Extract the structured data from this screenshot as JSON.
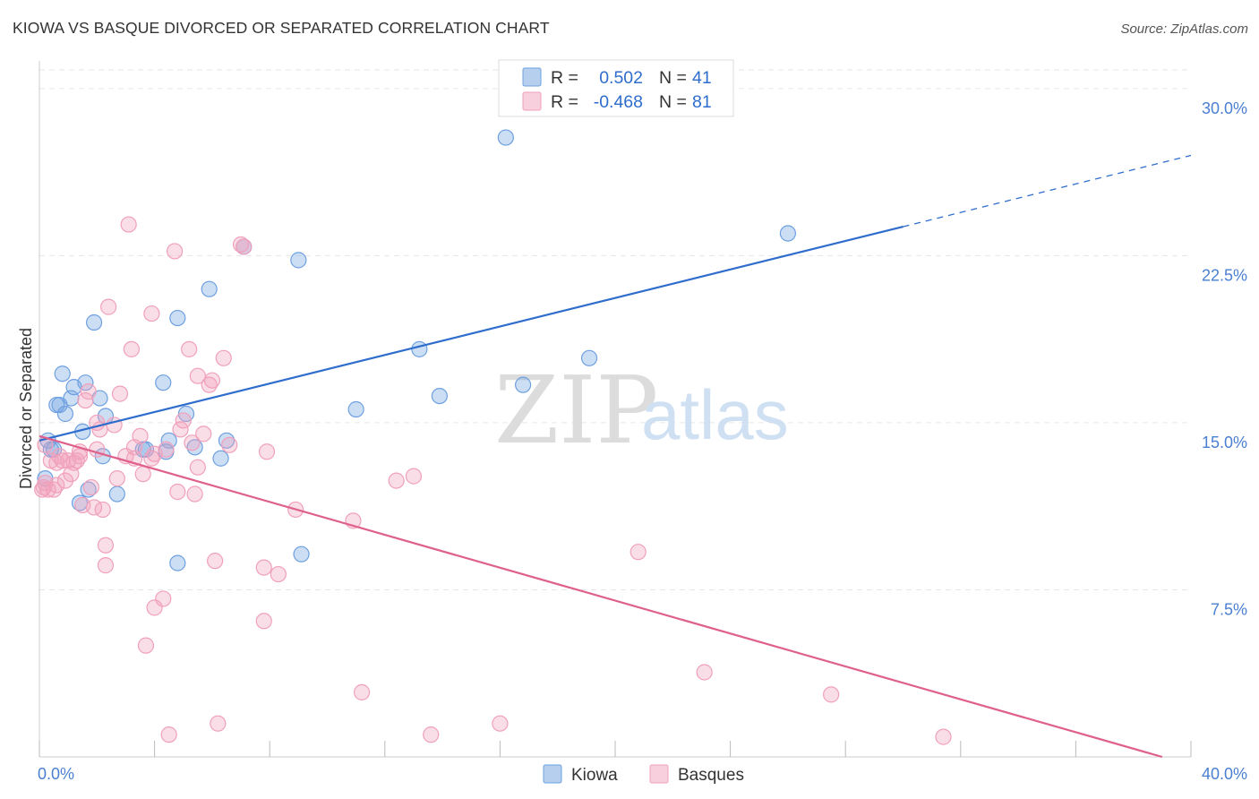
{
  "title": "KIOWA VS BASQUE DIVORCED OR SEPARATED CORRELATION CHART",
  "source": "Source: ZipAtlas.com",
  "watermark": {
    "zip": "ZIP",
    "atlas": "atlas"
  },
  "legend": {
    "r_label": "R =",
    "n_label": "N =",
    "kiowa": {
      "r": "0.502",
      "n": "41"
    },
    "basques": {
      "r": "-0.468",
      "n": "81"
    }
  },
  "chart_data": {
    "type": "scatter",
    "title": "KIOWA VS BASQUE DIVORCED OR SEPARATED CORRELATION CHART",
    "xlabel": "",
    "ylabel": "Divorced or Separated",
    "xlim": [
      0,
      40
    ],
    "ylim": [
      0,
      31
    ],
    "x_tick_labels": [
      "0.0%",
      "40.0%"
    ],
    "y_tick_labels": [
      "7.5%",
      "15.0%",
      "22.5%",
      "30.0%"
    ],
    "y_ticks": [
      7.5,
      15.0,
      22.5,
      30.0
    ],
    "legend_position": "top-center",
    "series": [
      {
        "name": "Kiowa",
        "color": "#6ea0e0",
        "line_color": "#2f6dcc",
        "trend": {
          "x0": 0,
          "y0": 14.2,
          "x1": 30,
          "y1": 23.8,
          "dash_to_x": 40,
          "dash_to_y": 27.0
        },
        "points": [
          [
            0.2,
            12.5
          ],
          [
            0.3,
            14.2
          ],
          [
            0.4,
            13.8
          ],
          [
            0.5,
            13.8
          ],
          [
            0.6,
            15.8
          ],
          [
            0.7,
            15.8
          ],
          [
            0.8,
            17.2
          ],
          [
            0.9,
            15.4
          ],
          [
            1.1,
            16.1
          ],
          [
            1.2,
            16.6
          ],
          [
            1.4,
            11.4
          ],
          [
            1.5,
            14.6
          ],
          [
            1.6,
            16.8
          ],
          [
            1.7,
            12.0
          ],
          [
            1.9,
            19.5
          ],
          [
            2.1,
            16.1
          ],
          [
            2.2,
            13.5
          ],
          [
            2.3,
            15.3
          ],
          [
            2.7,
            11.8
          ],
          [
            3.6,
            13.8
          ],
          [
            3.7,
            13.8
          ],
          [
            4.4,
            13.7
          ],
          [
            4.5,
            14.2
          ],
          [
            4.3,
            16.8
          ],
          [
            4.8,
            19.7
          ],
          [
            4.8,
            8.7
          ],
          [
            5.1,
            15.4
          ],
          [
            5.4,
            13.9
          ],
          [
            5.9,
            21.0
          ],
          [
            6.3,
            13.4
          ],
          [
            6.5,
            14.2
          ],
          [
            7.1,
            22.9
          ],
          [
            9.0,
            22.3
          ],
          [
            9.1,
            9.1
          ],
          [
            11.0,
            15.6
          ],
          [
            13.2,
            18.3
          ],
          [
            13.9,
            16.2
          ],
          [
            16.2,
            27.8
          ],
          [
            16.8,
            16.7
          ],
          [
            19.1,
            17.9
          ],
          [
            26.0,
            23.5
          ]
        ]
      },
      {
        "name": "Basques",
        "color": "#f0a0bb",
        "line_color": "#e0608c",
        "trend": {
          "x0": 0,
          "y0": 14.4,
          "x1": 39,
          "y1": 0.0
        },
        "points": [
          [
            0.1,
            12.0
          ],
          [
            0.2,
            12.3
          ],
          [
            0.3,
            12.0
          ],
          [
            0.4,
            13.3
          ],
          [
            0.5,
            12.0
          ],
          [
            0.6,
            13.2
          ],
          [
            0.7,
            13.5
          ],
          [
            0.8,
            13.3
          ],
          [
            0.9,
            12.4
          ],
          [
            1.0,
            13.3
          ],
          [
            1.1,
            12.7
          ],
          [
            1.2,
            13.2
          ],
          [
            1.3,
            13.3
          ],
          [
            1.4,
            13.5
          ],
          [
            1.5,
            11.3
          ],
          [
            1.6,
            16.0
          ],
          [
            1.7,
            16.4
          ],
          [
            1.8,
            12.1
          ],
          [
            1.9,
            11.2
          ],
          [
            2.0,
            15.0
          ],
          [
            2.1,
            14.7
          ],
          [
            2.2,
            11.1
          ],
          [
            2.3,
            9.5
          ],
          [
            2.3,
            8.6
          ],
          [
            2.4,
            20.2
          ],
          [
            2.6,
            14.9
          ],
          [
            2.7,
            12.5
          ],
          [
            2.8,
            16.3
          ],
          [
            3.0,
            13.5
          ],
          [
            3.1,
            23.9
          ],
          [
            3.2,
            18.3
          ],
          [
            3.3,
            13.9
          ],
          [
            3.5,
            14.4
          ],
          [
            3.6,
            12.7
          ],
          [
            3.7,
            5.0
          ],
          [
            3.9,
            13.4
          ],
          [
            3.9,
            19.9
          ],
          [
            4.0,
            6.7
          ],
          [
            4.3,
            7.1
          ],
          [
            4.4,
            13.8
          ],
          [
            4.5,
            1.0
          ],
          [
            4.7,
            22.7
          ],
          [
            4.8,
            11.9
          ],
          [
            4.9,
            14.7
          ],
          [
            5.0,
            15.1
          ],
          [
            5.2,
            18.3
          ],
          [
            5.3,
            14.1
          ],
          [
            5.4,
            11.8
          ],
          [
            5.5,
            13.0
          ],
          [
            5.5,
            17.1
          ],
          [
            5.7,
            14.5
          ],
          [
            5.9,
            16.7
          ],
          [
            6.0,
            16.9
          ],
          [
            6.1,
            8.8
          ],
          [
            6.2,
            1.5
          ],
          [
            6.4,
            17.9
          ],
          [
            6.6,
            14.0
          ],
          [
            7.0,
            23.0
          ],
          [
            7.1,
            22.9
          ],
          [
            7.8,
            8.5
          ],
          [
            7.8,
            6.1
          ],
          [
            7.9,
            13.7
          ],
          [
            8.3,
            8.2
          ],
          [
            8.9,
            11.1
          ],
          [
            10.9,
            10.6
          ],
          [
            11.2,
            2.9
          ],
          [
            12.4,
            12.4
          ],
          [
            13.0,
            12.6
          ],
          [
            13.6,
            1.0
          ],
          [
            16.0,
            1.5
          ],
          [
            20.8,
            9.2
          ],
          [
            23.1,
            3.8
          ],
          [
            27.5,
            2.8
          ],
          [
            31.4,
            0.9
          ],
          [
            0.2,
            14.0
          ],
          [
            0.6,
            12.2
          ],
          [
            1.4,
            13.7
          ],
          [
            2.0,
            13.8
          ],
          [
            3.3,
            13.4
          ],
          [
            4.0,
            13.6
          ],
          [
            0.15,
            12.1
          ]
        ]
      }
    ]
  }
}
